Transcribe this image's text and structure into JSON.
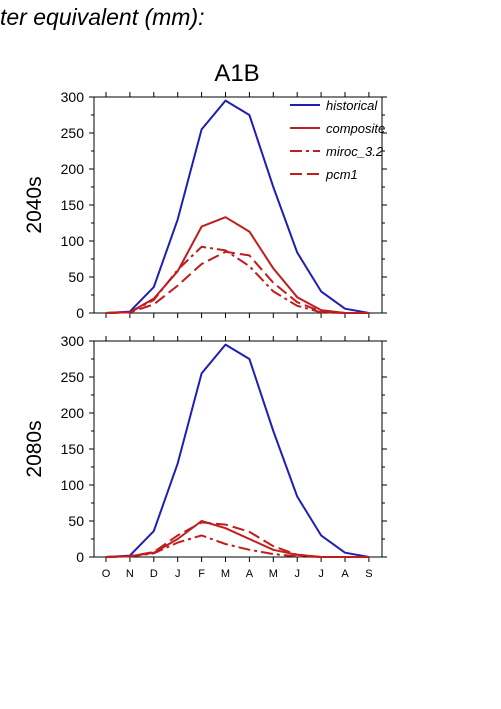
{
  "header": {
    "text": "ter equivalent (mm):"
  },
  "colors": {
    "historical": "#1f1fb5",
    "future": "#c01d1d",
    "axis": "#000000"
  },
  "chart_data": {
    "type": "line",
    "title": "A1B",
    "x": [
      "O",
      "N",
      "D",
      "J",
      "F",
      "M",
      "A",
      "M",
      "J",
      "J",
      "A",
      "S"
    ],
    "ylim": [
      0,
      300
    ],
    "yticks": [
      0,
      50,
      100,
      150,
      200,
      250,
      300
    ],
    "legend": {
      "placement": "top-right",
      "entries": [
        {
          "label": "historical",
          "style": "solid",
          "color": "#1f1fb5"
        },
        {
          "label": "composite",
          "style": "solid",
          "color": "#c01d1d"
        },
        {
          "label": "miroc_3.2",
          "style": "dashdot",
          "color": "#c01d1d"
        },
        {
          "label": "pcm1",
          "style": "dashed",
          "color": "#c01d1d"
        }
      ]
    },
    "panels": [
      {
        "label": "2040s",
        "series": [
          {
            "name": "historical",
            "style": "solid",
            "color": "#1f1fb5",
            "values": [
              0,
              2,
              36,
              130,
              255,
              295,
              275,
              175,
              84,
              30,
              6,
              0
            ]
          },
          {
            "name": "composite",
            "style": "solid",
            "color": "#c01d1d",
            "values": [
              0,
              1,
              20,
              58,
              120,
              133,
              113,
              62,
              22,
              4,
              0,
              0
            ]
          },
          {
            "name": "miroc_3.2",
            "style": "dashdot",
            "color": "#c01d1d",
            "values": [
              0,
              1,
              18,
              60,
              92,
              87,
              65,
              30,
              10,
              1,
              0,
              0
            ]
          },
          {
            "name": "pcm1",
            "style": "dashed",
            "color": "#c01d1d",
            "values": [
              0,
              1,
              12,
              38,
              68,
              85,
              80,
              42,
              15,
              2,
              0,
              0
            ]
          }
        ]
      },
      {
        "label": "2080s",
        "series": [
          {
            "name": "historical",
            "style": "solid",
            "color": "#1f1fb5",
            "values": [
              0,
              2,
              36,
              130,
              255,
              295,
              275,
              175,
              84,
              30,
              6,
              0
            ]
          },
          {
            "name": "composite",
            "style": "solid",
            "color": "#c01d1d",
            "values": [
              0,
              1,
              6,
              25,
              50,
              40,
              25,
              10,
              3,
              0,
              0,
              0
            ]
          },
          {
            "name": "miroc_3.2",
            "style": "dashdot",
            "color": "#c01d1d",
            "values": [
              0,
              1,
              5,
              20,
              30,
              18,
              10,
              4,
              1,
              0,
              0,
              0
            ]
          },
          {
            "name": "pcm1",
            "style": "dashed",
            "color": "#c01d1d",
            "values": [
              0,
              1,
              7,
              30,
              48,
              45,
              35,
              15,
              3,
              0,
              0,
              0
            ]
          }
        ]
      }
    ]
  }
}
